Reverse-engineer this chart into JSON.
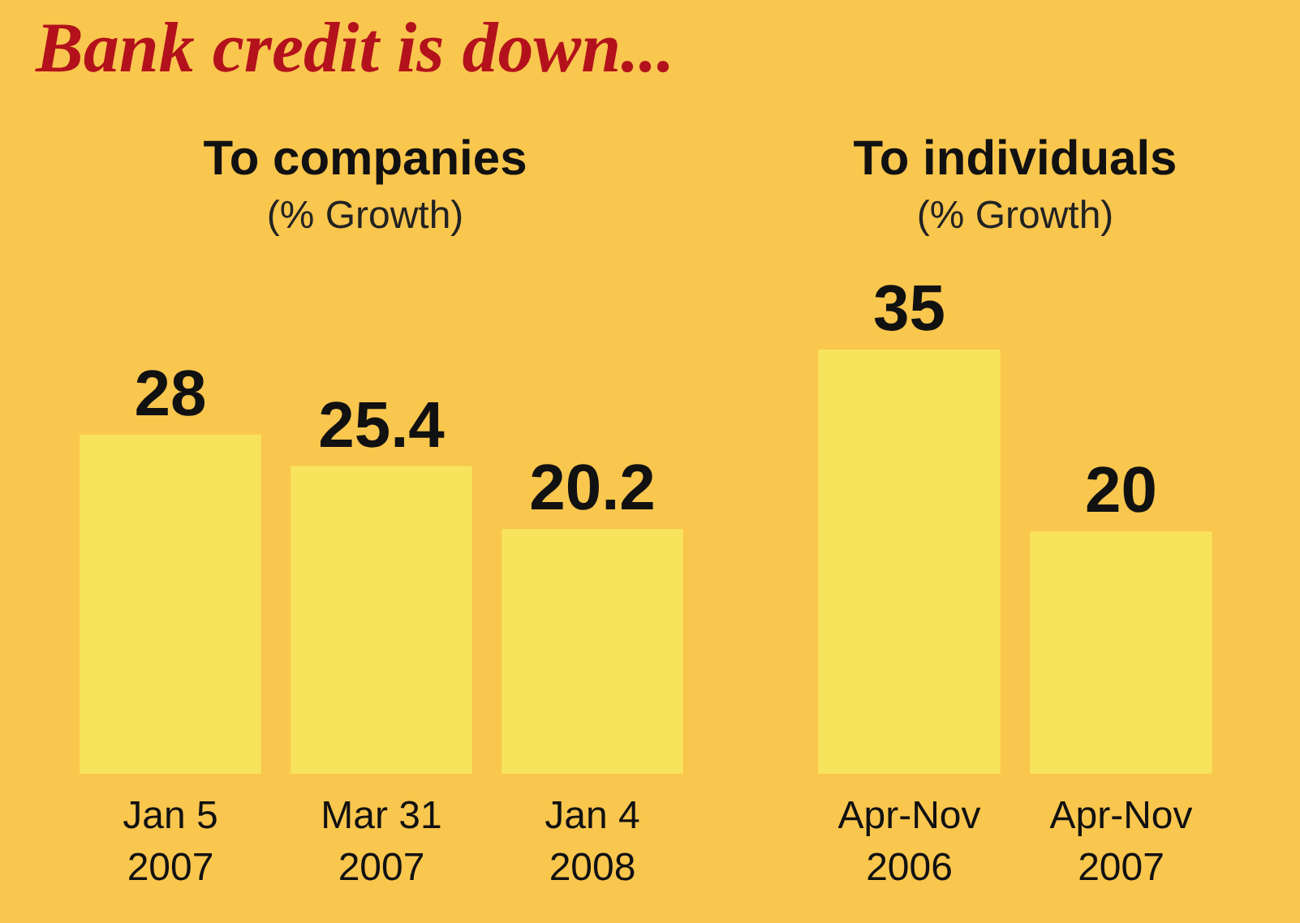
{
  "chart_data": [
    {
      "type": "bar",
      "title": "To companies",
      "subtitle": "(% Growth)",
      "annotations": [
        "Bank credit is down..."
      ],
      "categories": [
        "Jan 5\n2007",
        "Mar 31\n2007",
        "Jan 4\n2008"
      ],
      "values": [
        28,
        25.4,
        20.2
      ],
      "color": "#f8e35c",
      "data_labels": true,
      "tick_labels": "x"
    },
    {
      "type": "bar",
      "title": "To individuals",
      "subtitle": "(% Growth)",
      "categories": [
        "Apr-Nov\n2006",
        "Apr-Nov\n2007"
      ],
      "values": [
        35,
        20
      ],
      "color": "#f8e35c",
      "data_labels": true,
      "tick_labels": "x"
    }
  ]
}
